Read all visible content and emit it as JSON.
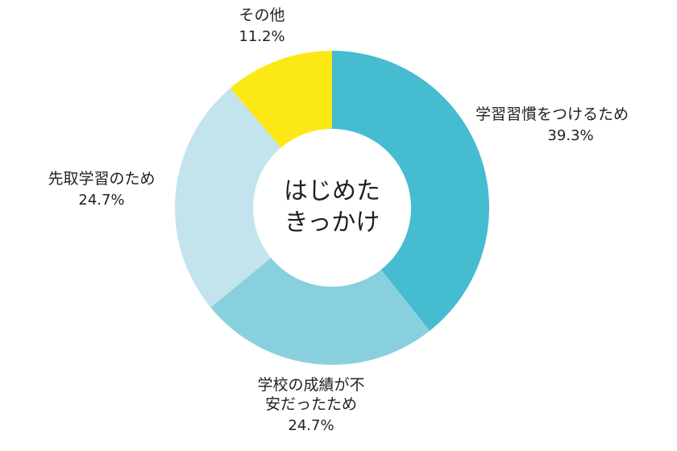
{
  "chart_data": {
    "type": "pie",
    "variant": "donut",
    "center_label": [
      "はじめた",
      "きっかけ"
    ],
    "slices": [
      {
        "label_lines": [
          "学習習慣をつけるため"
        ],
        "value": 39.3,
        "value_label": "39.3%",
        "color": "#45bcd0",
        "label_anchor": "start"
      },
      {
        "label_lines": [
          "学校の成績が不",
          "安だったため"
        ],
        "value": 24.7,
        "value_label": "24.7%",
        "color": "#89d0de",
        "label_anchor": "middle"
      },
      {
        "label_lines": [
          "先取学習のため"
        ],
        "value": 24.7,
        "value_label": "24.7%",
        "color": "#c3e4ec",
        "label_anchor": "middle"
      },
      {
        "label_lines": [
          "その他"
        ],
        "value": 11.2,
        "value_label": "11.2%",
        "color": "#fce814",
        "label_anchor": "middle"
      }
    ],
    "start_angle": "12 o'clock",
    "direction": "clockwise",
    "legend": "none"
  }
}
